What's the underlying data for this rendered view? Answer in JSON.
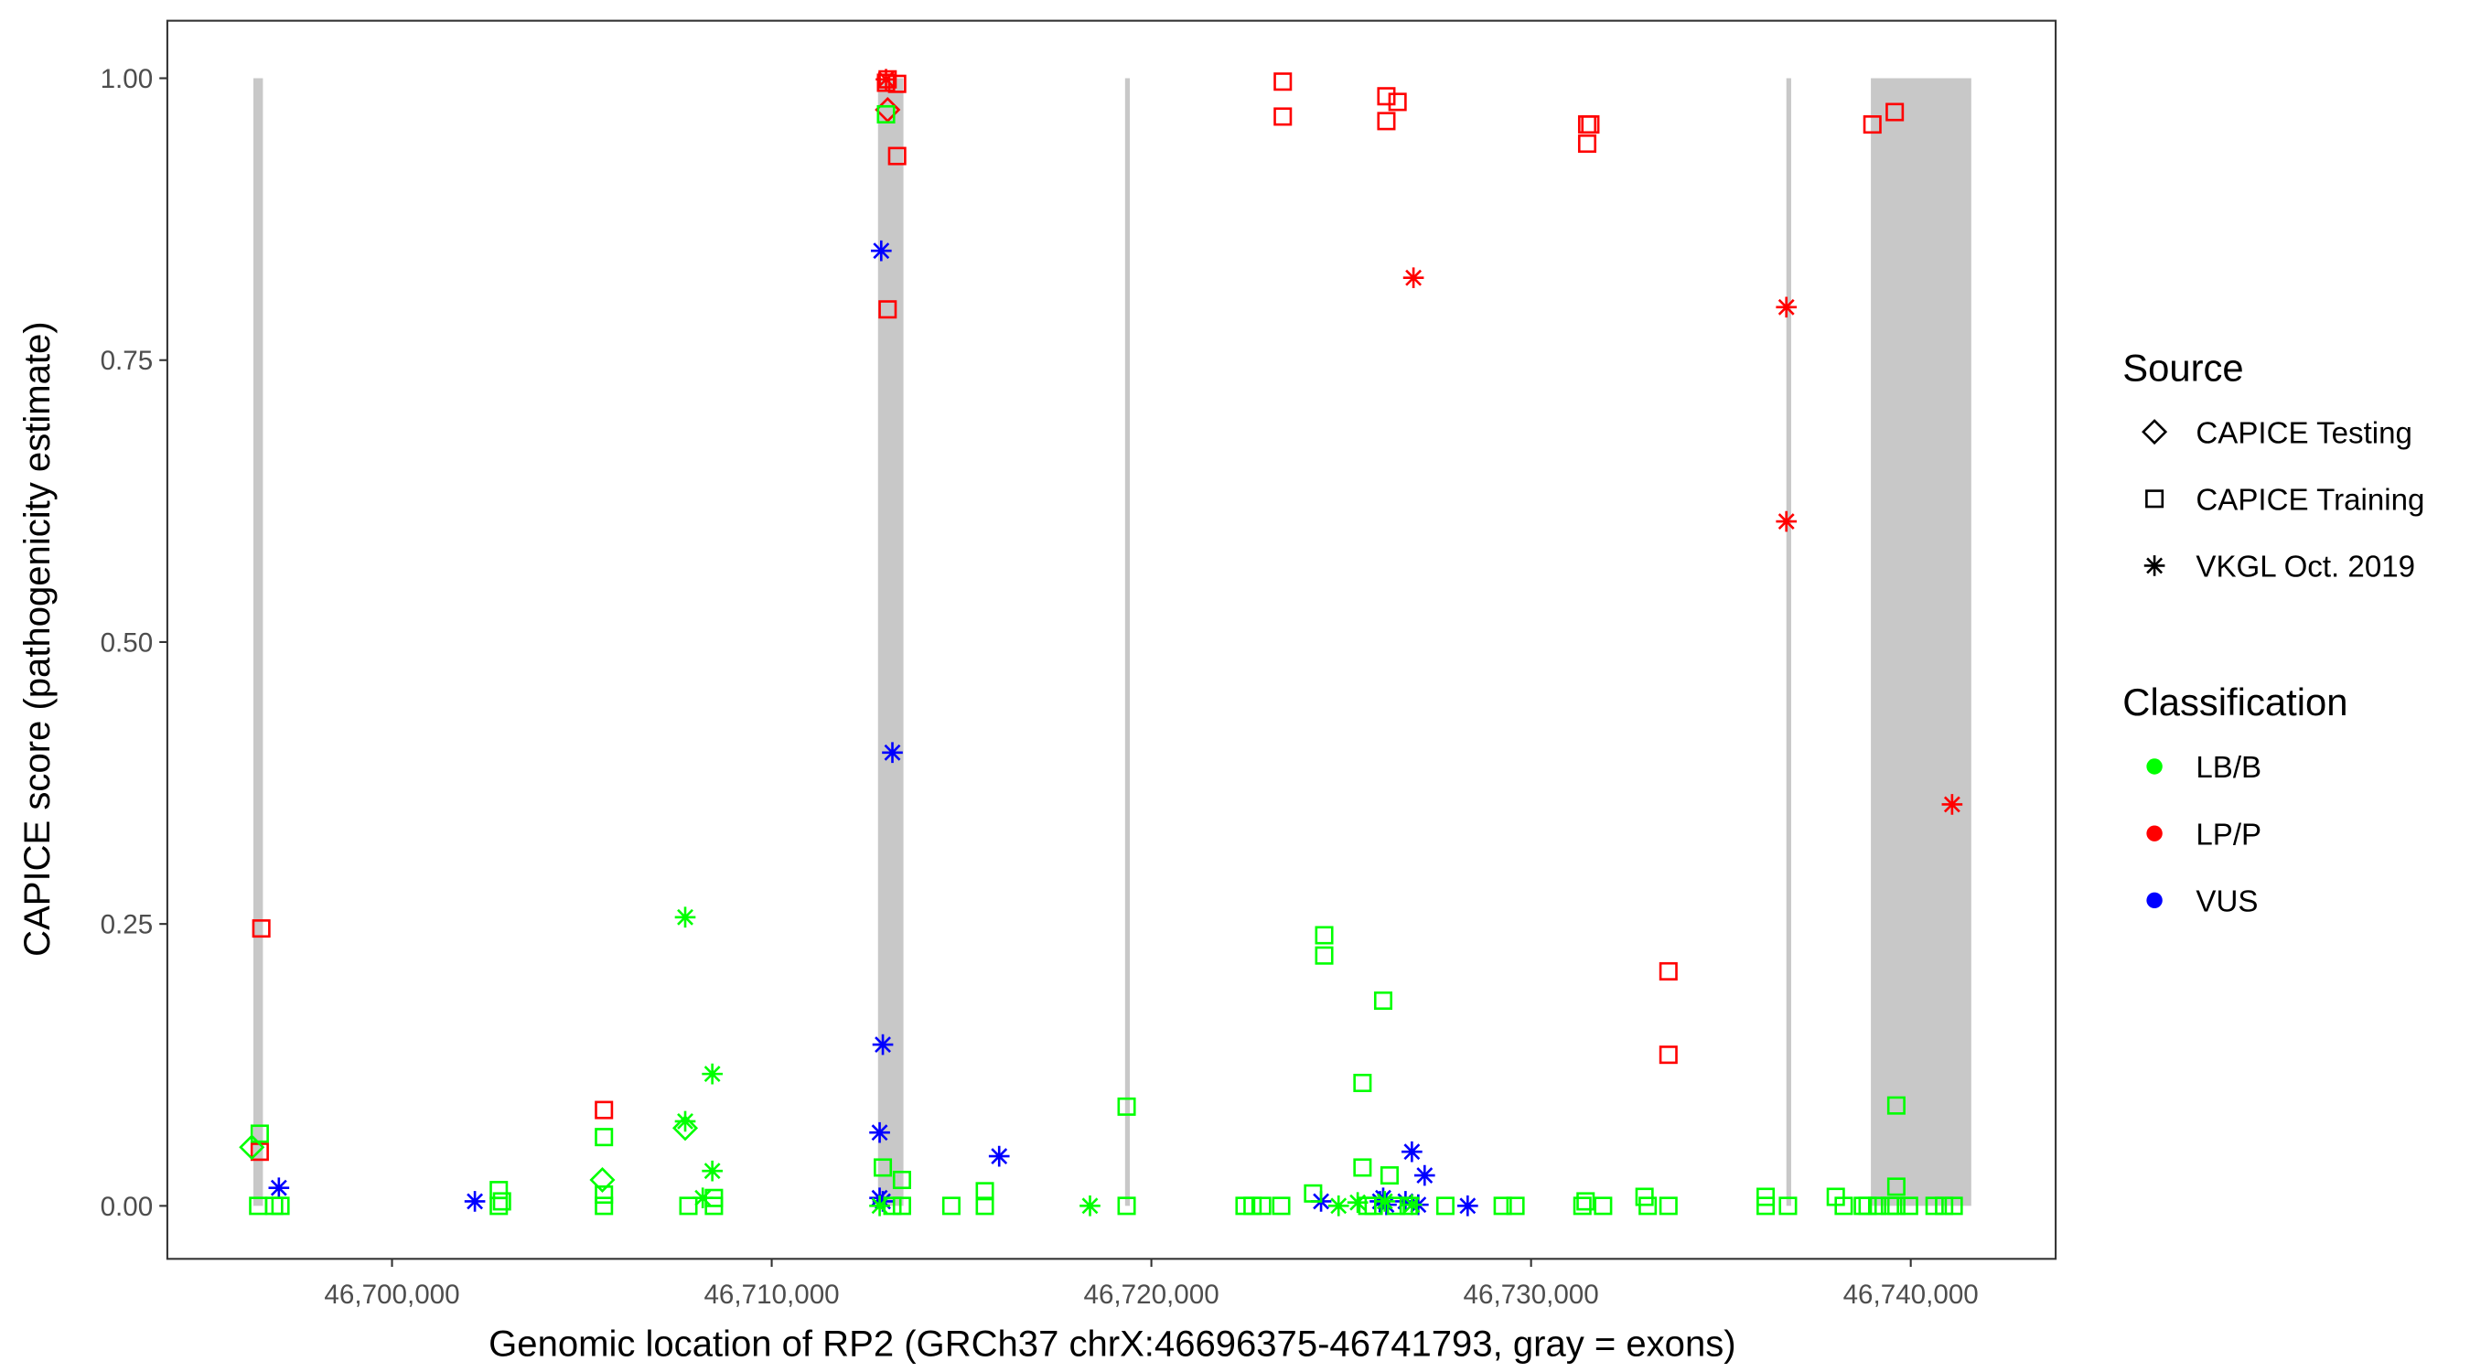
{
  "chart_data": {
    "type": "scatter",
    "xlabel": "Genomic location of RP2 (GRCh37 chrX:46696375-46741793, gray = exons)",
    "ylabel": "CAPICE score (pathogenicity estimate)",
    "xlim": [
      46694082,
      46743817
    ],
    "ylim": [
      -0.047,
      1.051
    ],
    "x_ticks": [
      46700000,
      46710000,
      46720000,
      46730000,
      46740000
    ],
    "x_tick_labels": [
      "46,700,000",
      "46,710,000",
      "46,720,000",
      "46,730,000",
      "46,740,000"
    ],
    "y_ticks": [
      0,
      0.25,
      0.5,
      0.75,
      1
    ],
    "y_tick_labels": [
      "0.00",
      "0.25",
      "0.50",
      "0.75",
      "1.00"
    ],
    "grid": false,
    "exons": [
      [
        46696349,
        46696600
      ],
      [
        46712800,
        46713470
      ],
      [
        46719307,
        46719433
      ],
      [
        46736724,
        46736850
      ],
      [
        46738950,
        46741594
      ]
    ],
    "colors": {
      "LB/B": "#00FF00",
      "LP/P": "#FF0000",
      "VUS": "#0000FF",
      "exon": "#C8C8C8"
    },
    "legend": {
      "placement": "right",
      "source_title": "Source",
      "source_items": [
        {
          "label": "CAPICE Testing",
          "shape": "diamond"
        },
        {
          "label": "CAPICE Training",
          "shape": "square"
        },
        {
          "label": "VKGL Oct. 2019",
          "shape": "asterisk"
        }
      ],
      "classification_title": "Classification",
      "classification_items": [
        {
          "label": "LB/B"
        },
        {
          "label": "LP/P"
        },
        {
          "label": "VUS"
        }
      ]
    },
    "series": [
      {
        "source": "CAPICE Training",
        "shape": "square",
        "classification": "LP/P",
        "points": [
          [
            46696558,
            0.246
          ],
          [
            46696516,
            0.048
          ],
          [
            46705582,
            0.085
          ],
          [
            46713053,
            0.999
          ],
          [
            46713011,
            0.996
          ],
          [
            46713304,
            0.995
          ],
          [
            46713053,
            0.795
          ],
          [
            46713304,
            0.931
          ],
          [
            46723461,
            0.997
          ],
          [
            46723461,
            0.966
          ],
          [
            46726189,
            0.984
          ],
          [
            46726189,
            0.962
          ],
          [
            46726483,
            0.979
          ],
          [
            46731478,
            0.959
          ],
          [
            46731561,
            0.959
          ],
          [
            46731478,
            0.942
          ],
          [
            46733618,
            0.208
          ],
          [
            46733618,
            0.134
          ],
          [
            46738990,
            0.959
          ],
          [
            46739578,
            0.97
          ]
        ]
      },
      {
        "source": "CAPICE Testing",
        "shape": "diamond",
        "classification": "LP/P",
        "points": [
          [
            46713053,
            0.972
          ]
        ]
      },
      {
        "source": "VKGL Oct. 2019",
        "shape": "asterisk",
        "classification": "LP/P",
        "points": [
          [
            46713011,
            0.999
          ],
          [
            46726903,
            0.823
          ],
          [
            46736724,
            0.797
          ],
          [
            46736724,
            0.607
          ],
          [
            46741089,
            0.356
          ]
        ]
      },
      {
        "source": "VKGL Oct. 2019",
        "shape": "asterisk",
        "classification": "VUS",
        "points": [
          [
            46697020,
            0.016
          ],
          [
            46702182,
            0.004
          ],
          [
            46712885,
            0.847
          ],
          [
            46713179,
            0.402
          ],
          [
            46712927,
            0.143
          ],
          [
            46712843,
            0.065
          ],
          [
            46712843,
            0.007
          ],
          [
            46712927,
            0.004
          ],
          [
            46715991,
            0.044
          ],
          [
            46724469,
            0.004
          ],
          [
            46726021,
            0.004
          ],
          [
            46726105,
            0.007
          ],
          [
            46726189,
            0.001
          ],
          [
            46726861,
            0.048
          ],
          [
            46727197,
            0.027
          ],
          [
            46726693,
            0.004
          ],
          [
            46727029,
            0.001
          ],
          [
            46728330,
            0.0
          ]
        ]
      },
      {
        "source": "CAPICE Testing",
        "shape": "diamond",
        "classification": "LB/B",
        "points": [
          [
            46696307,
            0.052
          ],
          [
            46705540,
            0.023
          ],
          [
            46707722,
            0.069
          ]
        ]
      },
      {
        "source": "VKGL Oct. 2019",
        "shape": "asterisk",
        "classification": "LB/B",
        "points": [
          [
            46707722,
            0.256
          ],
          [
            46708436,
            0.117
          ],
          [
            46707722,
            0.075
          ],
          [
            46708436,
            0.031
          ],
          [
            46708184,
            0.007
          ],
          [
            46712843,
            0.0
          ],
          [
            46718383,
            0.0
          ],
          [
            46724930,
            0.0
          ],
          [
            46725434,
            0.003
          ],
          [
            46726147,
            0.004
          ],
          [
            46726861,
            0.001
          ]
        ]
      },
      {
        "source": "CAPICE Training",
        "shape": "square",
        "classification": "LB/B",
        "points": [
          [
            46713011,
            0.968
          ],
          [
            46696516,
            0.064
          ],
          [
            46696475,
            0.0
          ],
          [
            46696894,
            0.0
          ],
          [
            46697062,
            0.0
          ],
          [
            46702812,
            0.014
          ],
          [
            46702812,
            0.0
          ],
          [
            46702896,
            0.004
          ],
          [
            46705582,
            0.061
          ],
          [
            46705582,
            0.01
          ],
          [
            46705582,
            0.0
          ],
          [
            46707806,
            0.0
          ],
          [
            46708478,
            0.0
          ],
          [
            46708478,
            0.007
          ],
          [
            46712927,
            0.034
          ],
          [
            46713430,
            0.023
          ],
          [
            46713179,
            0.0
          ],
          [
            46713430,
            0.0
          ],
          [
            46714731,
            0.0
          ],
          [
            46715613,
            0.013
          ],
          [
            46715613,
            0.0
          ],
          [
            46719348,
            0.088
          ],
          [
            46719348,
            0.0
          ],
          [
            46722454,
            0.0
          ],
          [
            46722664,
            0.0
          ],
          [
            46722916,
            0.0
          ],
          [
            46723419,
            0.0
          ],
          [
            46724259,
            0.011
          ],
          [
            46724552,
            0.24
          ],
          [
            46724552,
            0.222
          ],
          [
            46725560,
            0.109
          ],
          [
            46725560,
            0.034
          ],
          [
            46726105,
            0.182
          ],
          [
            46726273,
            0.027
          ],
          [
            46725686,
            0.0
          ],
          [
            46725854,
            0.0
          ],
          [
            46726441,
            0.0
          ],
          [
            46726777,
            0.0
          ],
          [
            46727742,
            0.0
          ],
          [
            46729253,
            0.0
          ],
          [
            46729589,
            0.0
          ],
          [
            46731352,
            0.0
          ],
          [
            46731436,
            0.004
          ],
          [
            46731897,
            0.0
          ],
          [
            46732988,
            0.008
          ],
          [
            46733072,
            0.0
          ],
          [
            46733618,
            0.0
          ],
          [
            46736178,
            0.008
          ],
          [
            46736178,
            0.0
          ],
          [
            46736766,
            0.0
          ],
          [
            46738025,
            0.008
          ],
          [
            46738235,
            0.0
          ],
          [
            46738738,
            0.0
          ],
          [
            46738864,
            0.0
          ],
          [
            46739116,
            0.0
          ],
          [
            46739452,
            0.0
          ],
          [
            46739620,
            0.089
          ],
          [
            46739620,
            0.017
          ],
          [
            46739620,
            0.0
          ],
          [
            46739955,
            0.0
          ],
          [
            46740627,
            0.0
          ],
          [
            46740879,
            0.0
          ],
          [
            46741131,
            0.0
          ]
        ]
      }
    ]
  }
}
